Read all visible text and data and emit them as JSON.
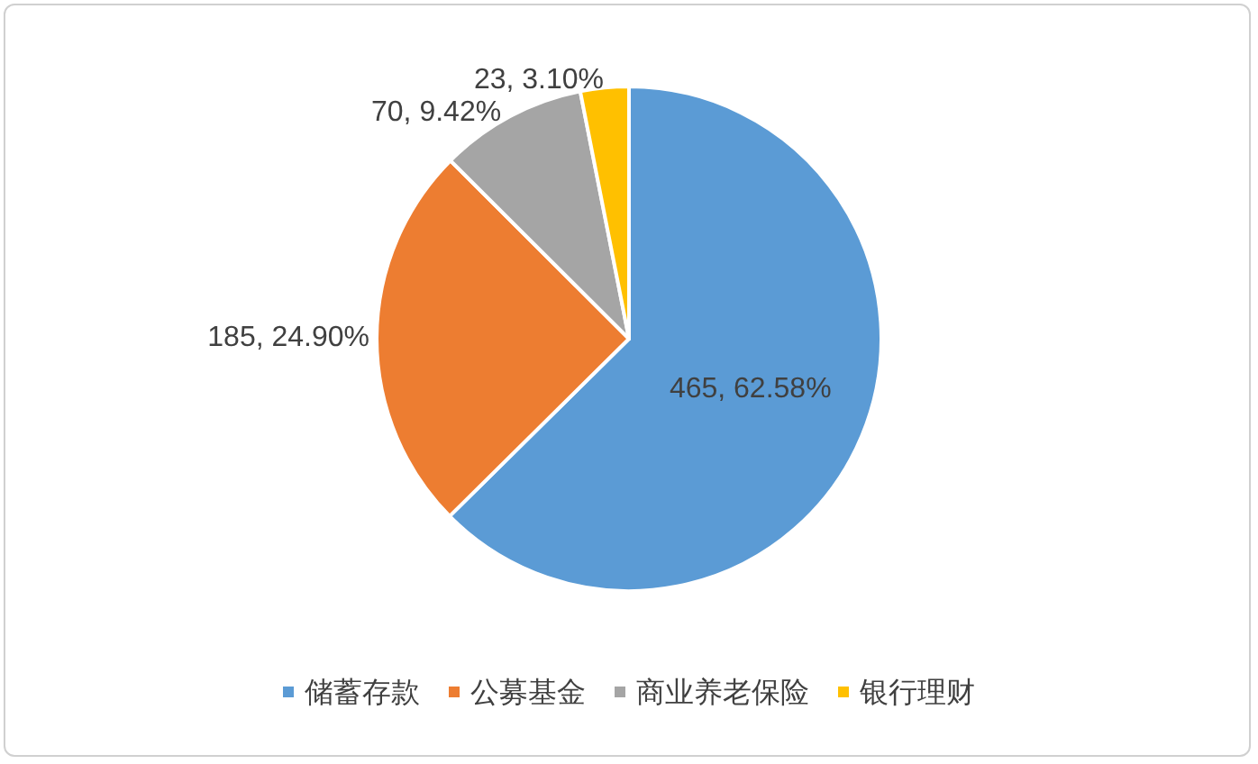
{
  "chart_data": {
    "type": "pie",
    "categories": [
      "储蓄存款",
      "公募基金",
      "商业养老保险",
      "银行理财"
    ],
    "values": [
      465,
      185,
      70,
      23
    ],
    "colors": [
      "#5b9bd5",
      "#ed7d31",
      "#a5a5a5",
      "#ffc000"
    ],
    "value_labels": [
      "465, 62.58%",
      "185, 24.90%",
      "70, 9.42%",
      "23, 3.10%"
    ],
    "legend": "bottom"
  }
}
